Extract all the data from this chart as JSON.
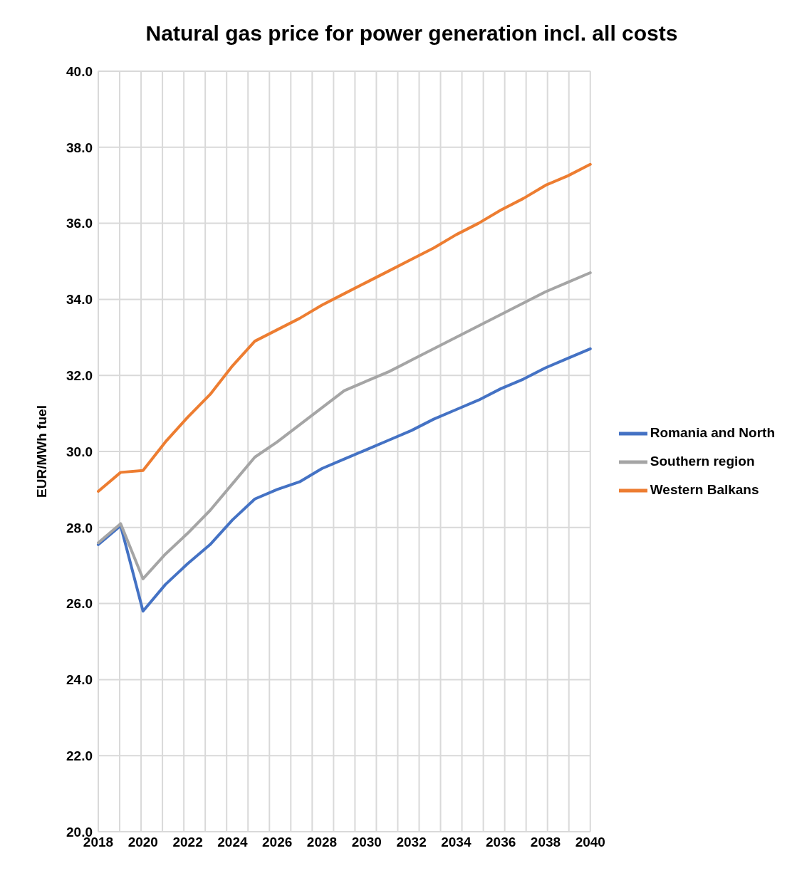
{
  "chart_data": {
    "type": "line",
    "title": "Natural gas price for power generation incl. all costs",
    "ylabel": "EUR/MWh fuel",
    "categories": [
      "2018",
      null,
      "2020",
      null,
      "2022",
      null,
      "2024",
      null,
      "2026",
      null,
      "2028",
      null,
      "2030",
      null,
      "2032",
      null,
      "2034",
      null,
      "2036",
      null,
      "2038",
      null,
      "2040"
    ],
    "series": [
      {
        "name": "Romania and North",
        "color": "#4472c4",
        "values": [
          27.55,
          28.05,
          25.8,
          26.5,
          27.05,
          27.55,
          28.2,
          28.75,
          29.0,
          29.2,
          29.55,
          29.8,
          30.05,
          30.3,
          30.55,
          30.85,
          31.1,
          31.35,
          31.65,
          31.9,
          32.2,
          32.45,
          32.7
        ]
      },
      {
        "name": "Western Balkans",
        "color": "#ed7d31",
        "values": [
          28.95,
          29.45,
          29.5,
          30.25,
          30.9,
          31.5,
          32.25,
          32.9,
          33.2,
          33.5,
          33.85,
          34.15,
          34.45,
          34.75,
          35.05,
          35.35,
          35.7,
          36.0,
          36.35,
          36.65,
          37.0,
          37.25,
          37.55
        ]
      },
      {
        "name": "Southern region",
        "color": "#a5a5a5",
        "values": [
          27.6,
          28.1,
          26.65,
          27.3,
          27.85,
          28.45,
          29.15,
          29.85,
          30.25,
          30.7,
          31.15,
          31.6,
          31.85,
          32.1,
          32.4,
          32.7,
          33.0,
          33.3,
          33.6,
          33.9,
          34.2,
          34.45,
          34.7
        ]
      }
    ],
    "ylim": [
      20,
      40
    ],
    "yticks": [
      {
        "value": 20,
        "label": "20.0"
      },
      {
        "value": 22,
        "label": "22.0"
      },
      {
        "value": 24,
        "label": "24.0"
      },
      {
        "value": 26,
        "label": "26.0"
      },
      {
        "value": 28,
        "label": "28.0"
      },
      {
        "value": 30,
        "label": "30.0"
      },
      {
        "value": 32,
        "label": "32.0"
      },
      {
        "value": 34,
        "label": "34.0"
      },
      {
        "value": 36,
        "label": "36.0"
      },
      {
        "value": 38,
        "label": "38.0"
      },
      {
        "value": 40,
        "label": "40.0"
      }
    ],
    "grid": true,
    "legend": "right",
    "marker": "none",
    "line_style": "solid"
  }
}
